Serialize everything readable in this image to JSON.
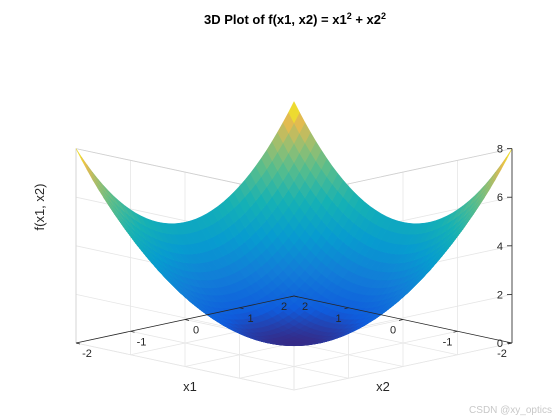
{
  "chart_data": {
    "type": "surface",
    "title_main": "3D Plot of f(x1, x2) = x1",
    "title_exp1": "2",
    "title_mid": " + x2",
    "title_exp2": "2",
    "xlabel": "x1",
    "ylabel": "x2",
    "zlabel": "f(x1, x2)",
    "function": "x1^2 + x2^2",
    "x_ticks": [
      "-2",
      "-1",
      "0",
      "1",
      "2"
    ],
    "y_ticks": [
      "-2",
      "-1",
      "0",
      "1",
      "2"
    ],
    "z_ticks": [
      "0",
      "2",
      "4",
      "6",
      "8"
    ],
    "xlim": [
      -2,
      2
    ],
    "ylim": [
      -2,
      2
    ],
    "zlim": [
      0,
      8
    ],
    "grid": true,
    "colormap": "parula"
  },
  "watermark": "CSDN @xy_optics"
}
